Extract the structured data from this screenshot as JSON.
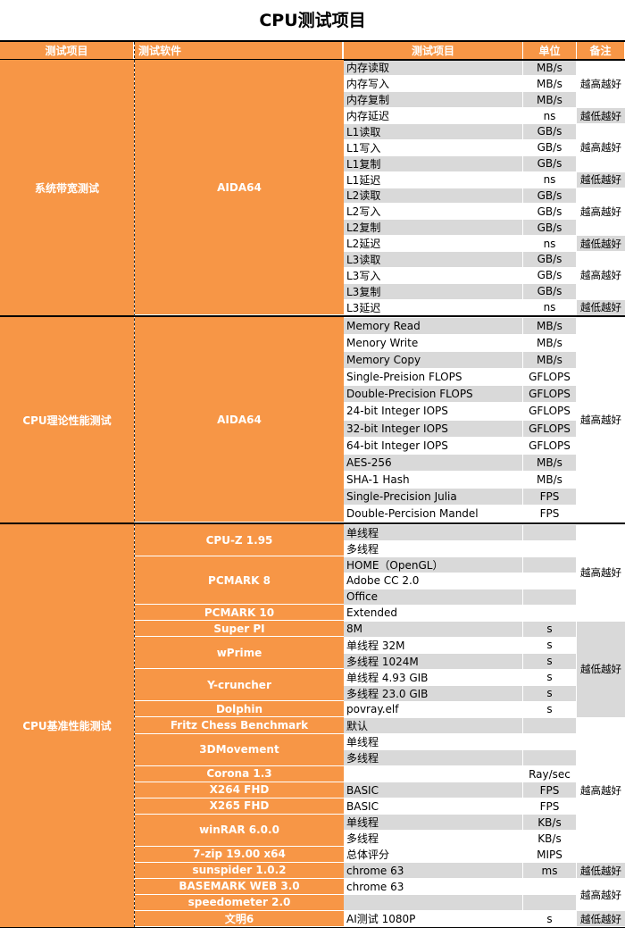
{
  "title": "CPU测试项目",
  "header": [
    "测试项目",
    "测试软件",
    "测试项目",
    "单位",
    "备注"
  ],
  "colors": {
    "orange": "#f79646",
    "gray": "#d9d9d9"
  },
  "sections": [
    {
      "name": "系统带宽测试",
      "software": [
        {
          "name": "AIDA64",
          "span": 16
        }
      ],
      "rows": [
        {
          "item": "内存读取",
          "unit": "MB/s",
          "shaded": true
        },
        {
          "item": "内存写入",
          "unit": "MB/s",
          "shaded": false
        },
        {
          "item": "内存复制",
          "unit": "MB/s",
          "shaded": true
        },
        {
          "item": "内存延迟",
          "unit": "ns",
          "shaded": false
        },
        {
          "item": "L1读取",
          "unit": "GB/s",
          "shaded": true
        },
        {
          "item": "L1写入",
          "unit": "GB/s",
          "shaded": false
        },
        {
          "item": "L1复制",
          "unit": "GB/s",
          "shaded": true
        },
        {
          "item": "L1延迟",
          "unit": "ns",
          "shaded": false
        },
        {
          "item": "L2读取",
          "unit": "GB/s",
          "shaded": true
        },
        {
          "item": "L2写入",
          "unit": "GB/s",
          "shaded": false
        },
        {
          "item": "L2复制",
          "unit": "GB/s",
          "shaded": true
        },
        {
          "item": "L2延迟",
          "unit": "ns",
          "shaded": false
        },
        {
          "item": "L3读取",
          "unit": "GB/s",
          "shaded": true
        },
        {
          "item": "L3写入",
          "unit": "GB/s",
          "shaded": false
        },
        {
          "item": "L3复制",
          "unit": "GB/s",
          "shaded": true
        },
        {
          "item": "L3延迟",
          "unit": "ns",
          "shaded": false
        }
      ],
      "notes": [
        {
          "text": "越高越好",
          "span": 3,
          "shaded": false
        },
        {
          "text": "越低越好",
          "span": 1,
          "shaded": true
        },
        {
          "text": "越高越好",
          "span": 3,
          "shaded": false
        },
        {
          "text": "越低越好",
          "span": 1,
          "shaded": true
        },
        {
          "text": "越高越好",
          "span": 3,
          "shaded": false
        },
        {
          "text": "越低越好",
          "span": 1,
          "shaded": true
        },
        {
          "text": "越高越好",
          "span": 3,
          "shaded": false
        },
        {
          "text": "越低越好",
          "span": 1,
          "shaded": true
        }
      ]
    },
    {
      "name": "CPU理论性能测试",
      "software": [
        {
          "name": "AIDA64",
          "span": 12
        }
      ],
      "rows": [
        {
          "item": "Memory Read",
          "unit": "MB/s",
          "shaded": true
        },
        {
          "item": "Menory Write",
          "unit": "MB/s",
          "shaded": false
        },
        {
          "item": "Memory Copy",
          "unit": "MB/s",
          "shaded": true
        },
        {
          "item": "Single-Preision FLOPS",
          "unit": "GFLOPS",
          "shaded": false
        },
        {
          "item": "Double-Precision FLOPS",
          "unit": "GFLOPS",
          "shaded": true
        },
        {
          "item": "24-bit Integer IOPS",
          "unit": "GFLOPS",
          "shaded": false
        },
        {
          "item": "32-bit Integer IOPS",
          "unit": "GFLOPS",
          "shaded": true
        },
        {
          "item": "64-bit Integer IOPS",
          "unit": "GFLOPS",
          "shaded": false
        },
        {
          "item": "AES-256",
          "unit": "MB/s",
          "shaded": true
        },
        {
          "item": "SHA-1 Hash",
          "unit": "MB/s",
          "shaded": false
        },
        {
          "item": "Single-Precision Julia",
          "unit": "FPS",
          "shaded": true
        },
        {
          "item": "Double-Percision Mandel",
          "unit": "FPS",
          "shaded": false
        }
      ],
      "notes": [
        {
          "text": "越高越好",
          "span": 12,
          "shaded": false
        }
      ]
    },
    {
      "name": "CPU基准性能测试",
      "software": [
        {
          "name": "CPU-Z  1.95",
          "span": 2
        },
        {
          "name": "PCMARK 8",
          "span": 3
        },
        {
          "name": "PCMARK 10",
          "span": 1
        },
        {
          "name": "Super PI",
          "span": 1
        },
        {
          "name": "wPrime",
          "span": 2
        },
        {
          "name": "Y-cruncher",
          "span": 2
        },
        {
          "name": "Dolphin",
          "span": 1
        },
        {
          "name": "Fritz Chess Benchmark",
          "span": 1
        },
        {
          "name": "3DMovement",
          "span": 2
        },
        {
          "name": "Corona 1.3",
          "span": 1
        },
        {
          "name": "X264 FHD",
          "span": 1
        },
        {
          "name": "X265 FHD",
          "span": 1
        },
        {
          "name": "winRAR 6.0.0",
          "span": 2
        },
        {
          "name": "7-zip 19.00 x64",
          "span": 1
        },
        {
          "name": "sunspider 1.0.2",
          "span": 1
        },
        {
          "name": "BASEMARK WEB 3.0",
          "span": 1
        },
        {
          "name": "speedometer 2.0",
          "span": 1
        },
        {
          "name": "文明6",
          "span": 1
        }
      ],
      "rows": [
        {
          "item": "单线程",
          "unit": "",
          "shaded": true
        },
        {
          "item": "多线程",
          "unit": "",
          "shaded": false
        },
        {
          "item": "HOME（OpenGL）",
          "unit": "",
          "shaded": true
        },
        {
          "item": "Adobe CC 2.0",
          "unit": "",
          "shaded": false
        },
        {
          "item": "Office",
          "unit": "",
          "shaded": true
        },
        {
          "item": "Extended",
          "unit": "",
          "shaded": false
        },
        {
          "item": "8M",
          "unit": "s",
          "shaded": true
        },
        {
          "item": "单线程 32M",
          "unit": "s",
          "shaded": false
        },
        {
          "item": "多线程 1024M",
          "unit": "s",
          "shaded": true
        },
        {
          "item": "单线程 4.93 GIB",
          "unit": "s",
          "shaded": false
        },
        {
          "item": "多线程 23.0 GIB",
          "unit": "s",
          "shaded": true
        },
        {
          "item": "povray.elf",
          "unit": "s",
          "shaded": false
        },
        {
          "item": "默认",
          "unit": "",
          "shaded": true
        },
        {
          "item": "单线程",
          "unit": "",
          "shaded": false
        },
        {
          "item": "多线程",
          "unit": "",
          "shaded": true
        },
        {
          "item": "",
          "unit": "Ray/sec",
          "shaded": false
        },
        {
          "item": "BASIC",
          "unit": "FPS",
          "shaded": true
        },
        {
          "item": "BASIC",
          "unit": "FPS",
          "shaded": false
        },
        {
          "item": "单线程",
          "unit": "KB/s",
          "shaded": true
        },
        {
          "item": "多线程",
          "unit": "KB/s",
          "shaded": false
        },
        {
          "item": "总体评分",
          "unit": "MIPS",
          "shaded": false
        },
        {
          "item": "chrome 63",
          "unit": "ms",
          "shaded": true
        },
        {
          "item": "chrome 63",
          "unit": "",
          "shaded": false
        },
        {
          "item": "",
          "unit": "",
          "shaded": true
        },
        {
          "item": "AI测试 1080P",
          "unit": "s",
          "shaded": false
        }
      ],
      "notes": [
        {
          "text": "越高越好",
          "span": 6,
          "shaded": false
        },
        {
          "text": "越低越好",
          "span": 6,
          "shaded": true
        },
        {
          "text": "越高越好",
          "span": 9,
          "shaded": false
        },
        {
          "text": "越低越好",
          "span": 1,
          "shaded": true
        },
        {
          "text": "越高越好",
          "span": 2,
          "shaded": false
        },
        {
          "text": "越低越好",
          "span": 1,
          "shaded": true
        }
      ]
    }
  ]
}
